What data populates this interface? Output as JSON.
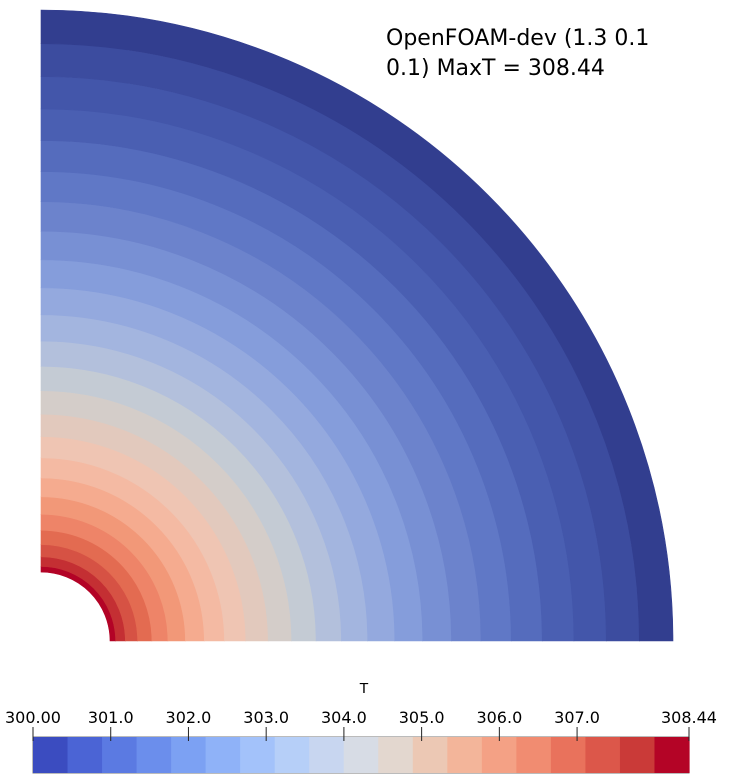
{
  "annotation": {
    "line1": "OpenFOAM-dev (1.3 0.1",
    "line2": "0.1) MaxT = 308.44"
  },
  "field": {
    "name": "T",
    "min": 300.0,
    "max": 308.44,
    "ring_count": 24,
    "ring_colors": [
      "#b30326",
      "#c42f33",
      "#d65244",
      "#e36b51",
      "#ee8468",
      "#f29878",
      "#f5ab8f",
      "#f4baa3",
      "#efc5b3",
      "#e2c9bd",
      "#d4cdc9",
      "#c4cbd4",
      "#b3c0dc",
      "#a3b5df",
      "#94a9de",
      "#859ddb",
      "#7890d4",
      "#6c83cc",
      "#6078c6",
      "#556cbd",
      "#4a5fb2",
      "#4356aa",
      "#3c4c9f",
      "#323e8f"
    ]
  },
  "colorbar": {
    "title": "T",
    "tick_labels": [
      "300.00",
      "301.0",
      "302.0",
      "303.0",
      "304.0",
      "305.0",
      "306.0",
      "307.0",
      "308.44"
    ],
    "tick_values": [
      300.0,
      301.0,
      302.0,
      303.0,
      304.0,
      305.0,
      306.0,
      307.0,
      308.44
    ],
    "bands": [
      "#3b4cc0",
      "#4b64d5",
      "#5b7ae2",
      "#6b8eec",
      "#7ca1f3",
      "#8fb2f8",
      "#a3c2fa",
      "#b6cff8",
      "#c8d6f0",
      "#d7dce5",
      "#e3d7cf",
      "#ecc8b4",
      "#f3b59a",
      "#f4a185",
      "#f18c71",
      "#e9725c",
      "#dc574a",
      "#ca3a38",
      "#b40426"
    ]
  }
}
